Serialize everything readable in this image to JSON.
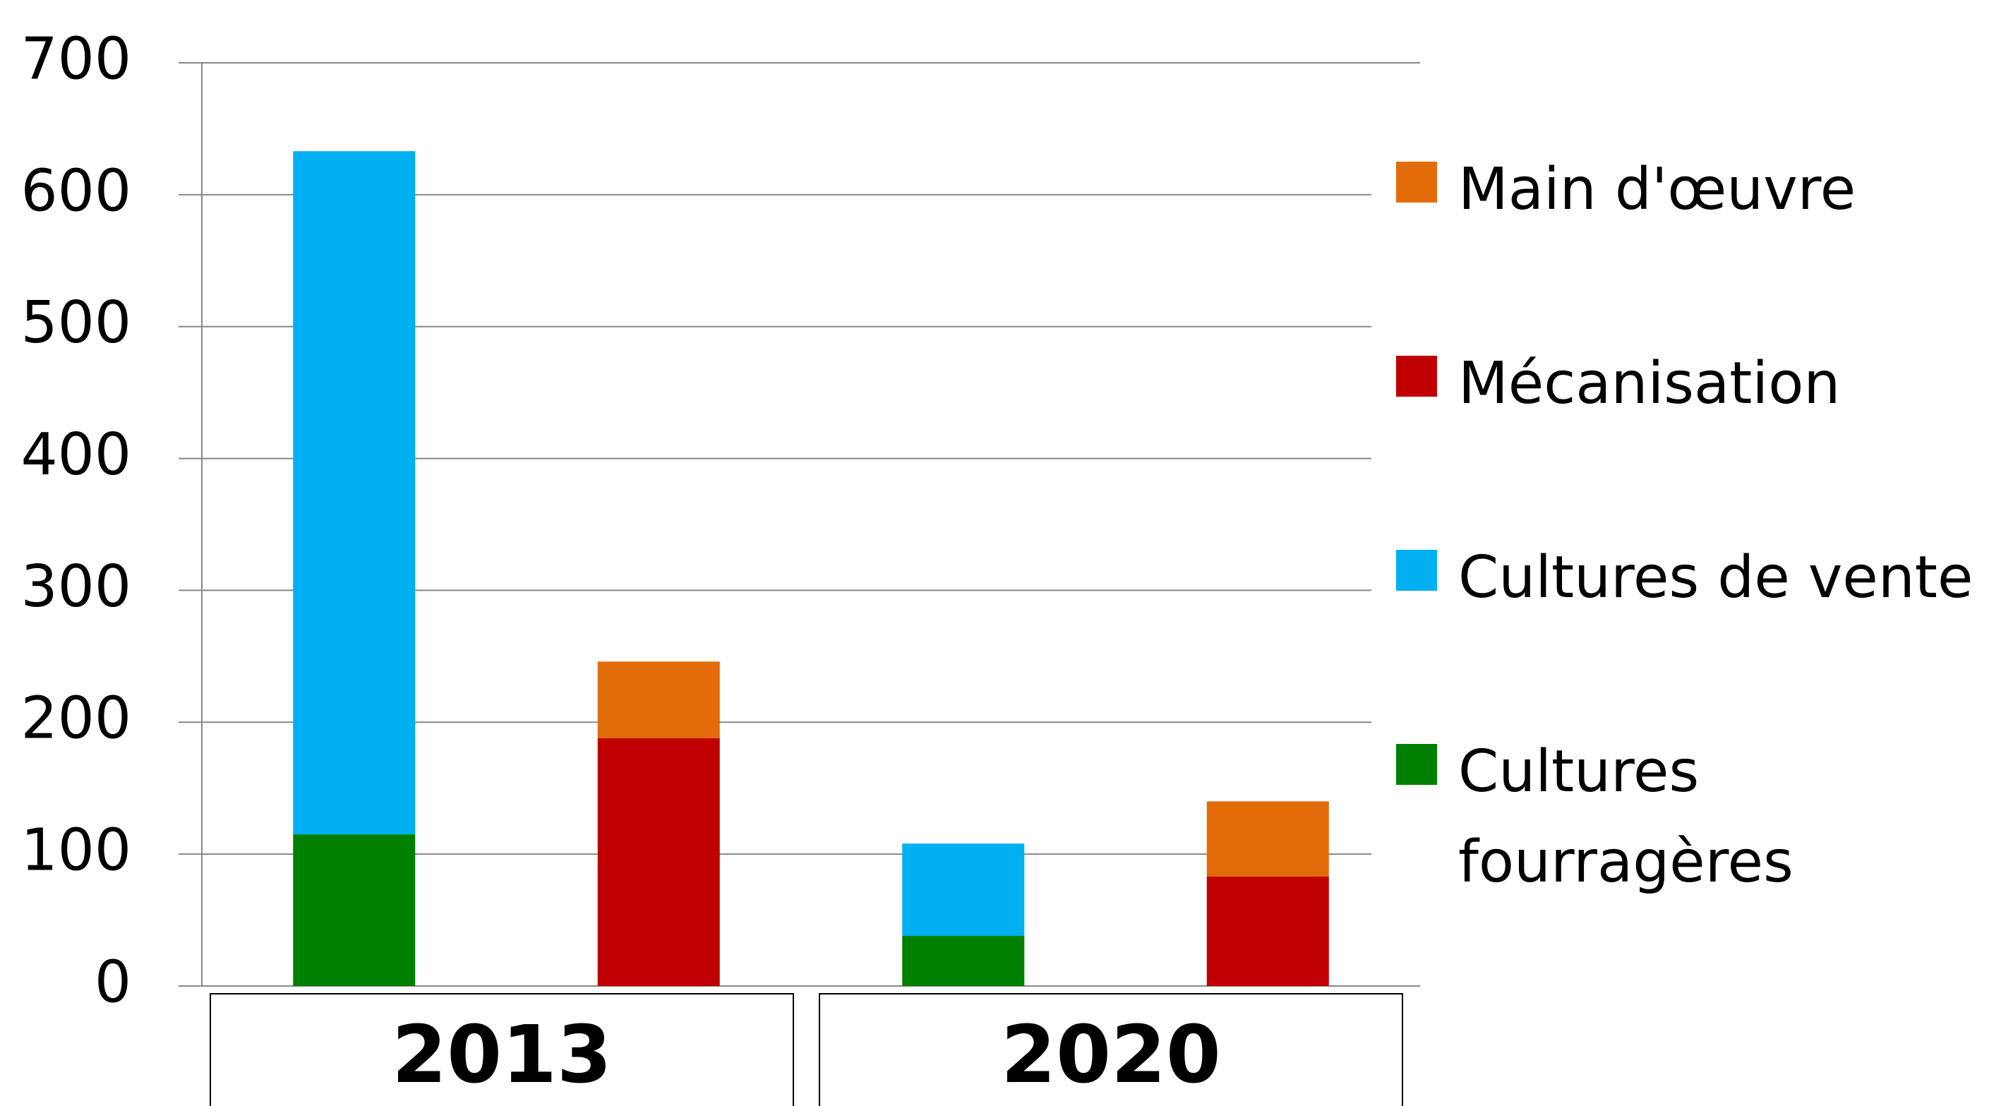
{
  "chart_data": {
    "type": "stacked_bar",
    "categories": [
      null,
      null,
      null,
      null
    ],
    "groups": [
      "2013",
      "2020"
    ],
    "series": [
      {
        "name": "Cultures fourragères",
        "color": "#008000",
        "values": [
          115,
          null,
          38,
          null
        ]
      },
      {
        "name": "Cultures de vente",
        "color": "#00b0f0",
        "values": [
          518,
          null,
          70,
          null
        ]
      },
      {
        "name": "Mécanisation",
        "color": "#c00000",
        "values": [
          null,
          188,
          null,
          83
        ]
      },
      {
        "name": "Main d'œuvre",
        "color": "#e36c0a",
        "values": [
          null,
          58,
          null,
          57
        ]
      }
    ],
    "ylim": [
      0,
      700
    ],
    "yticks": [
      0,
      100,
      200,
      300,
      400,
      500,
      600,
      700
    ],
    "grid": true
  }
}
